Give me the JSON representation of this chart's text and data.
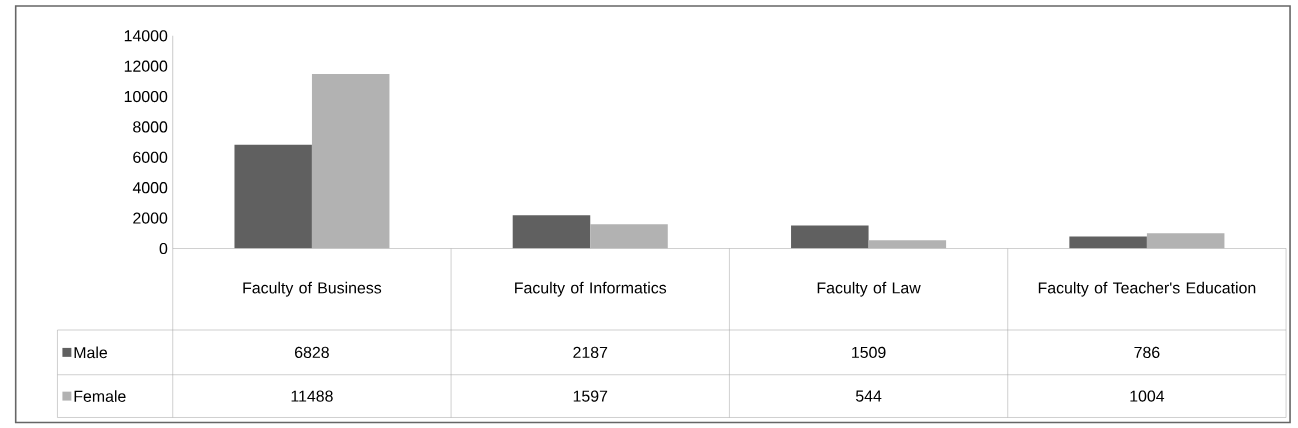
{
  "chart_data": {
    "type": "bar",
    "categories": [
      "Faculty of Business",
      "Faculty of Informatics",
      "Faculty of Law",
      "Faculty of Teacher's Education"
    ],
    "series": [
      {
        "name": "Male",
        "color": "#606060",
        "values": [
          6828,
          2187,
          1509,
          786
        ]
      },
      {
        "name": "Female",
        "color": "#b2b2b2",
        "values": [
          11488,
          1597,
          544,
          1004
        ]
      }
    ],
    "ylim": [
      0,
      14000
    ],
    "yticks": [
      0,
      2000,
      4000,
      6000,
      8000,
      10000,
      12000,
      14000
    ],
    "data_labels": true,
    "legend": "bottom left",
    "grid": false
  }
}
